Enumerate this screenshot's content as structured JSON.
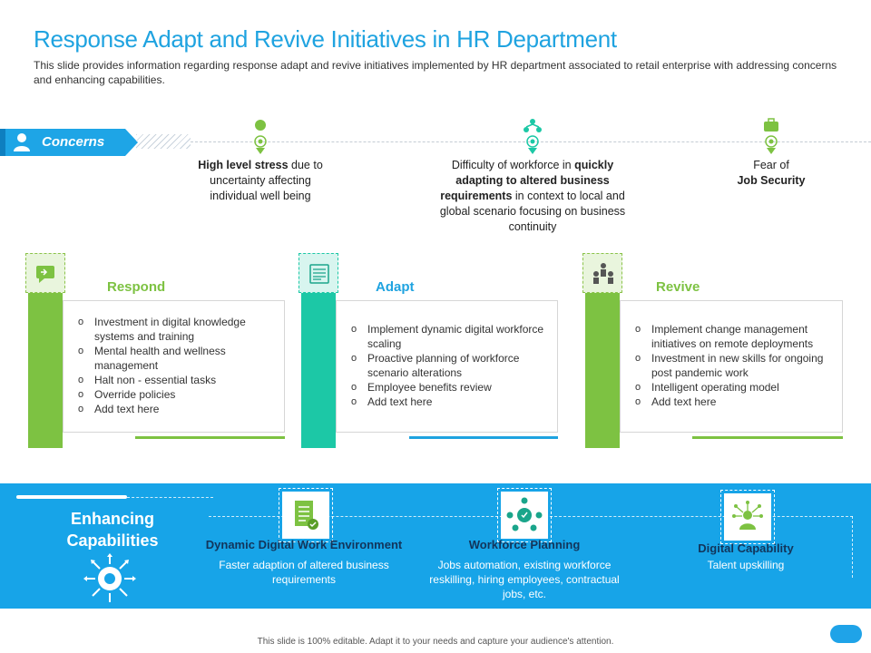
{
  "title": "Response Adapt and Revive Initiatives in HR Department",
  "subtitle": "This slide provides information regarding response adapt and revive initiatives implemented by HR department associated to retail enterprise with addressing concerns and enhancing capabilities.",
  "concerns": {
    "label": "Concerns",
    "items": [
      {
        "icon": "brain-icon",
        "bold": "High level stress",
        "rest": "due to uncertainty affecting individual well being"
      },
      {
        "icon": "network-icon",
        "pre": "Difficulty of workforce in ",
        "bold": "quickly adapting to altered business requirements",
        "rest": " in context to local and global scenario focusing on business continuity"
      },
      {
        "icon": "briefcase-icon",
        "pre": "Fear of",
        "bold": "Job Security"
      }
    ]
  },
  "cards": [
    {
      "title": "Respond",
      "icon": "chat-icon",
      "color": "#7dc242",
      "items": [
        "Investment in digital knowledge systems and training",
        "Mental health and wellness management",
        "Halt non - essential tasks",
        "Override  policies",
        "Add text here"
      ]
    },
    {
      "title": "Adapt",
      "icon": "document-icon",
      "color": "#1cc8a6",
      "items": [
        "Implement dynamic digital workforce scaling",
        "Proactive planning of workforce scenario alterations",
        "Employee benefits review",
        "Add text here"
      ]
    },
    {
      "title": "Revive",
      "icon": "team-icon",
      "color": "#7dc242",
      "items": [
        "Implement change management initiatives on remote deployments",
        "Investment in new skills for ongoing post pandemic work",
        "Intelligent operating model",
        "Add text here"
      ]
    }
  ],
  "enhancing": {
    "title_line1": "Enhancing",
    "title_line2": "Capabilities",
    "items": [
      {
        "title": "Dynamic Digital Work Environment",
        "desc": "Faster adaption  of altered business requirements",
        "icon": "checklist-icon"
      },
      {
        "title": "Workforce Planning",
        "desc": "Jobs automation, existing workforce reskilling, hiring employees, contractual jobs, etc.",
        "icon": "workforce-icon"
      },
      {
        "title": "Digital Capability",
        "desc": "Talent upskilling",
        "icon": "digital-person-icon"
      }
    ]
  },
  "footer": "This slide is 100% editable. Adapt it to your needs and capture your audience's attention.",
  "colors": {
    "blue": "#17a4e8",
    "green": "#7dc242",
    "teal": "#1cc8a6",
    "navy": "#12355b"
  }
}
